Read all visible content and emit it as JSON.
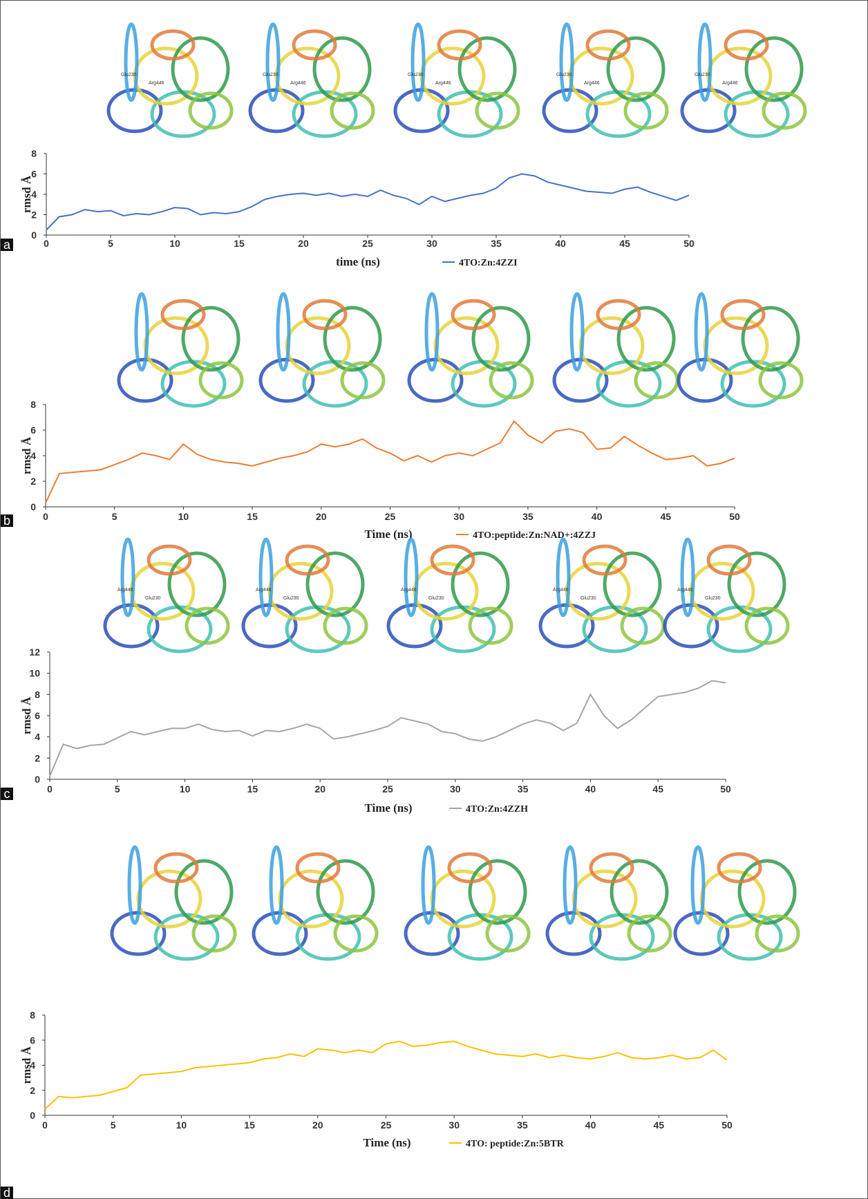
{
  "chart_data": [
    {
      "type": "line",
      "panel": "a",
      "x_label": "time (ns)",
      "y_label": "rmsd Å",
      "structures": [
        {
          "labels": [
            "Glu230",
            "Arg446"
          ]
        },
        {
          "labels": [
            "Glu230",
            "Arg446"
          ]
        },
        {
          "labels": [
            "Glu230",
            "Arg446"
          ]
        },
        {
          "labels": [
            "Glu230",
            "Arg446"
          ]
        },
        {
          "labels": [
            "Glu230",
            "Arg446"
          ]
        }
      ],
      "x": [
        0,
        1,
        2,
        3,
        4,
        5,
        6,
        7,
        8,
        9,
        10,
        11,
        12,
        13,
        14,
        15,
        16,
        17,
        18,
        19,
        20,
        21,
        22,
        23,
        24,
        25,
        26,
        27,
        28,
        29,
        30,
        31,
        32,
        33,
        34,
        35,
        36,
        37,
        38,
        39,
        40,
        41,
        42,
        43,
        44,
        45,
        46,
        47,
        48,
        49,
        50
      ],
      "series": [
        {
          "name": "4TO:Zn:4ZZI",
          "color": "#4472c4",
          "values": [
            0.5,
            1.8,
            2.0,
            2.5,
            2.3,
            2.4,
            1.9,
            2.1,
            2.0,
            2.3,
            2.7,
            2.6,
            2.0,
            2.2,
            2.1,
            2.3,
            2.8,
            3.5,
            3.8,
            4.0,
            4.1,
            3.9,
            4.1,
            3.8,
            4.0,
            3.8,
            4.4,
            3.9,
            3.6,
            3.0,
            3.8,
            3.3,
            3.6,
            3.9,
            4.1,
            4.6,
            5.6,
            6.0,
            5.8,
            5.2,
            4.9,
            4.6,
            4.3,
            4.2,
            4.1,
            4.5,
            4.7,
            4.2,
            3.8,
            3.4,
            3.9
          ]
        }
      ],
      "xlim": [
        0,
        50
      ],
      "xticks": [
        0,
        5,
        10,
        15,
        20,
        25,
        30,
        35,
        40,
        45,
        50
      ],
      "ylim": [
        0,
        8
      ],
      "yticks": [
        0,
        2,
        4,
        6,
        8
      ]
    },
    {
      "type": "line",
      "panel": "b",
      "x_label": "Time (ns)",
      "y_label": "rmsd Å",
      "x": [
        0,
        1,
        2,
        3,
        4,
        5,
        6,
        7,
        8,
        9,
        10,
        11,
        12,
        13,
        14,
        15,
        16,
        17,
        18,
        19,
        20,
        21,
        22,
        23,
        24,
        25,
        26,
        27,
        28,
        29,
        30,
        31,
        32,
        33,
        34,
        35,
        36,
        37,
        38,
        39,
        40,
        41,
        42,
        43,
        44,
        45,
        46,
        47,
        48,
        49,
        50
      ],
      "series": [
        {
          "name": "4TO:peptide:Zn:NAD+:4ZZJ",
          "color": "#ed7d31",
          "values": [
            0.3,
            2.6,
            2.7,
            2.8,
            2.9,
            3.3,
            3.7,
            4.2,
            4.0,
            3.7,
            4.9,
            4.1,
            3.7,
            3.5,
            3.4,
            3.2,
            3.5,
            3.8,
            4.0,
            4.3,
            4.9,
            4.7,
            4.9,
            5.3,
            4.6,
            4.2,
            3.6,
            4.0,
            3.5,
            4.0,
            4.2,
            4.0,
            4.5,
            5.0,
            6.7,
            5.6,
            5.0,
            5.9,
            6.1,
            5.8,
            4.5,
            4.6,
            5.5,
            4.8,
            4.2,
            3.7,
            3.8,
            4.0,
            3.2,
            3.4,
            3.8
          ]
        }
      ],
      "xlim": [
        0,
        50
      ],
      "xticks": [
        0,
        5,
        10,
        15,
        20,
        25,
        30,
        35,
        40,
        45,
        50
      ],
      "ylim": [
        0,
        8
      ],
      "yticks": [
        0,
        2,
        4,
        6,
        8
      ]
    },
    {
      "type": "line",
      "panel": "c",
      "x_label": "Time  (ns)",
      "y_label": "rmsd Å",
      "structures": [
        {
          "labels": [
            "Arg446",
            "Glu230"
          ]
        },
        {
          "labels": [
            "Arg446",
            "Glu230"
          ]
        },
        {
          "labels": [
            "Arg446",
            "Glu230"
          ]
        },
        {
          "labels": [
            "Arg446",
            "Glu230"
          ]
        },
        {
          "labels": [
            "Arg446",
            "Glu230"
          ]
        }
      ],
      "x": [
        0,
        1,
        2,
        3,
        4,
        5,
        6,
        7,
        8,
        9,
        10,
        11,
        12,
        13,
        14,
        15,
        16,
        17,
        18,
        19,
        20,
        21,
        22,
        23,
        24,
        25,
        26,
        27,
        28,
        29,
        30,
        31,
        32,
        33,
        34,
        35,
        36,
        37,
        38,
        39,
        40,
        41,
        42,
        43,
        44,
        45,
        46,
        47,
        48,
        49,
        50
      ],
      "series": [
        {
          "name": "4TO:Zn:4ZZH",
          "color": "#a5a5a5",
          "values": [
            0.3,
            3.3,
            2.9,
            3.2,
            3.3,
            3.9,
            4.5,
            4.2,
            4.5,
            4.8,
            4.8,
            5.2,
            4.7,
            4.5,
            4.6,
            4.1,
            4.6,
            4.5,
            4.8,
            5.2,
            4.8,
            3.8,
            4.0,
            4.3,
            4.6,
            5.0,
            5.8,
            5.5,
            5.2,
            4.5,
            4.3,
            3.8,
            3.6,
            4.0,
            4.6,
            5.2,
            5.6,
            5.3,
            4.6,
            5.3,
            8.0,
            6.0,
            4.8,
            5.6,
            6.7,
            7.8,
            8.0,
            8.2,
            8.6,
            9.3,
            9.1
          ]
        }
      ],
      "xlim": [
        0,
        50
      ],
      "xticks": [
        0,
        5,
        10,
        15,
        20,
        25,
        30,
        35,
        40,
        45,
        50
      ],
      "ylim": [
        0,
        12
      ],
      "yticks": [
        0,
        2,
        4,
        6,
        8,
        10,
        12
      ]
    },
    {
      "type": "line",
      "panel": "d",
      "x_label": "Time (ns)",
      "y_label": "rmsd Å",
      "x": [
        0,
        1,
        2,
        3,
        4,
        5,
        6,
        7,
        8,
        9,
        10,
        11,
        12,
        13,
        14,
        15,
        16,
        17,
        18,
        19,
        20,
        21,
        22,
        23,
        24,
        25,
        26,
        27,
        28,
        29,
        30,
        31,
        32,
        33,
        34,
        35,
        36,
        37,
        38,
        39,
        40,
        41,
        42,
        43,
        44,
        45,
        46,
        47,
        48,
        49,
        50
      ],
      "series": [
        {
          "name": "4TO: peptide:Zn:5BTR",
          "color": "#ffc000",
          "values": [
            0.5,
            1.5,
            1.4,
            1.5,
            1.6,
            1.9,
            2.2,
            3.2,
            3.3,
            3.4,
            3.5,
            3.8,
            3.9,
            4.0,
            4.1,
            4.2,
            4.5,
            4.6,
            4.9,
            4.7,
            5.3,
            5.2,
            5.0,
            5.2,
            5.0,
            5.7,
            5.9,
            5.5,
            5.6,
            5.8,
            5.9,
            5.5,
            5.2,
            4.9,
            4.8,
            4.7,
            4.9,
            4.6,
            4.8,
            4.6,
            4.5,
            4.7,
            5.0,
            4.6,
            4.5,
            4.6,
            4.8,
            4.5,
            4.6,
            5.2,
            4.4
          ]
        }
      ],
      "xlim": [
        0,
        50
      ],
      "xticks": [
        0,
        5,
        10,
        15,
        20,
        25,
        30,
        35,
        40,
        45,
        50
      ],
      "ylim": [
        0,
        8
      ],
      "yticks": [
        0,
        2,
        4,
        6,
        8
      ]
    }
  ]
}
